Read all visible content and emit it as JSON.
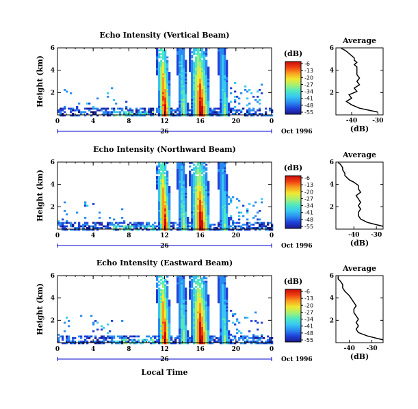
{
  "chart_data": [
    {
      "type": "heatmap",
      "title": "Echo Intensity (Vertical Beam)",
      "ylabel": "Height (km)",
      "xlabel": "",
      "x_ticks": [
        "0",
        "4",
        "8",
        "12",
        "16",
        "20",
        "0"
      ],
      "date_ticks": [
        "26"
      ],
      "date_label": "Oct 1996",
      "y_ticks": [
        "2",
        "4",
        "6"
      ],
      "xlim": [
        0,
        24
      ],
      "ylim": [
        0,
        6
      ],
      "colorbar": {
        "label": "(dB)",
        "ticks": [
          "-6",
          "-13",
          "-20",
          "-27",
          "-34",
          "-41",
          "-48",
          "-55"
        ]
      },
      "profile": {
        "title": "Average",
        "xlabel": "(dB)",
        "x_ticks": [
          "-40",
          "-30"
        ],
        "y_ticks": [
          "2",
          "4",
          "6"
        ],
        "xlim": [
          -46,
          -28
        ],
        "ylim": [
          0,
          6
        ],
        "x": [
          -30,
          -33,
          -37,
          -40,
          -42,
          -40,
          -41,
          -38,
          -39,
          -37,
          -38,
          -37,
          -38,
          -38,
          -38,
          -38,
          -39,
          -38,
          -39,
          -39,
          -40,
          -41,
          -42,
          -43,
          -44
        ],
        "y": [
          0.25,
          0.4,
          0.6,
          0.9,
          1.2,
          1.5,
          1.8,
          2.1,
          2.4,
          2.7,
          3.0,
          3.3,
          3.6,
          3.8,
          4.1,
          4.3,
          4.5,
          4.7,
          4.9,
          5.1,
          5.3,
          5.5,
          5.7,
          5.85,
          5.95
        ]
      }
    },
    {
      "type": "heatmap",
      "title": "Echo Intensity (Northward Beam)",
      "ylabel": "Height (km)",
      "xlabel": "",
      "x_ticks": [
        "0",
        "4",
        "8",
        "12",
        "16",
        "20",
        "0"
      ],
      "date_ticks": [
        "26"
      ],
      "date_label": "Oct 1996",
      "y_ticks": [
        "2",
        "4",
        "6"
      ],
      "xlim": [
        0,
        24
      ],
      "ylim": [
        0,
        6
      ],
      "colorbar": {
        "label": "(dB)",
        "ticks": [
          "-6",
          "-13",
          "-20",
          "-27",
          "-34",
          "-41",
          "-48",
          "-55"
        ]
      },
      "profile": {
        "title": "Average",
        "xlabel": "(dB)",
        "x_ticks": [
          "-40",
          "-30"
        ],
        "y_ticks": [
          "2",
          "4",
          "6"
        ],
        "xlim": [
          -48,
          -27
        ],
        "ylim": [
          0,
          6
        ],
        "x": [
          -27,
          -30,
          -34,
          -37,
          -38,
          -38,
          -37,
          -38,
          -37,
          -38,
          -39,
          -37,
          -38,
          -38,
          -40,
          -42,
          -43,
          -44,
          -44,
          -45,
          -45,
          -46,
          -47
        ],
        "y": [
          0.25,
          0.4,
          0.6,
          0.9,
          1.2,
          1.5,
          1.8,
          2.1,
          2.4,
          2.7,
          3.0,
          3.3,
          3.6,
          3.9,
          4.2,
          4.4,
          4.6,
          4.8,
          5.0,
          5.3,
          5.5,
          5.8,
          5.95
        ]
      }
    },
    {
      "type": "heatmap",
      "title": "Echo Intensity (Eastward Beam)",
      "ylabel": "Height (km)",
      "xlabel": "Local Time",
      "x_ticks": [
        "0",
        "4",
        "8",
        "12",
        "16",
        "20",
        "0"
      ],
      "date_ticks": [
        "26"
      ],
      "date_label": "Oct 1996",
      "y_ticks": [
        "2",
        "4",
        "6"
      ],
      "xlim": [
        0,
        24
      ],
      "ylim": [
        0,
        6
      ],
      "colorbar": {
        "label": "(dB)",
        "ticks": [
          "-6",
          "-13",
          "-20",
          "-27",
          "-34",
          "-41",
          "-48",
          "-55"
        ]
      },
      "profile": {
        "title": "Average",
        "xlabel": "(dB)",
        "x_ticks": [
          "-40",
          "-30"
        ],
        "y_ticks": [
          "2",
          "4",
          "6"
        ],
        "xlim": [
          -46,
          -25
        ],
        "ylim": [
          0,
          6
        ],
        "x": [
          -25,
          -28,
          -32,
          -36,
          -37,
          -36,
          -37,
          -36,
          -37,
          -38,
          -38,
          -37,
          -38,
          -39,
          -40,
          -41,
          -42,
          -43,
          -43,
          -44,
          -45,
          -45
        ],
        "y": [
          0.25,
          0.4,
          0.6,
          0.9,
          1.2,
          1.5,
          1.8,
          2.1,
          2.4,
          2.7,
          3.0,
          3.3,
          3.6,
          3.9,
          4.2,
          4.4,
          4.6,
          4.9,
          5.2,
          5.5,
          5.7,
          5.95
        ]
      }
    }
  ],
  "colors": {
    "colormap": [
      "#1a1a8c",
      "#2040d8",
      "#2a8cf0",
      "#38c8f0",
      "#50e8c0",
      "#a8f070",
      "#f0e830",
      "#f8a020",
      "#f04010",
      "#c80c0c"
    ],
    "axis": "#000000",
    "date_axis": "#0000cc"
  }
}
